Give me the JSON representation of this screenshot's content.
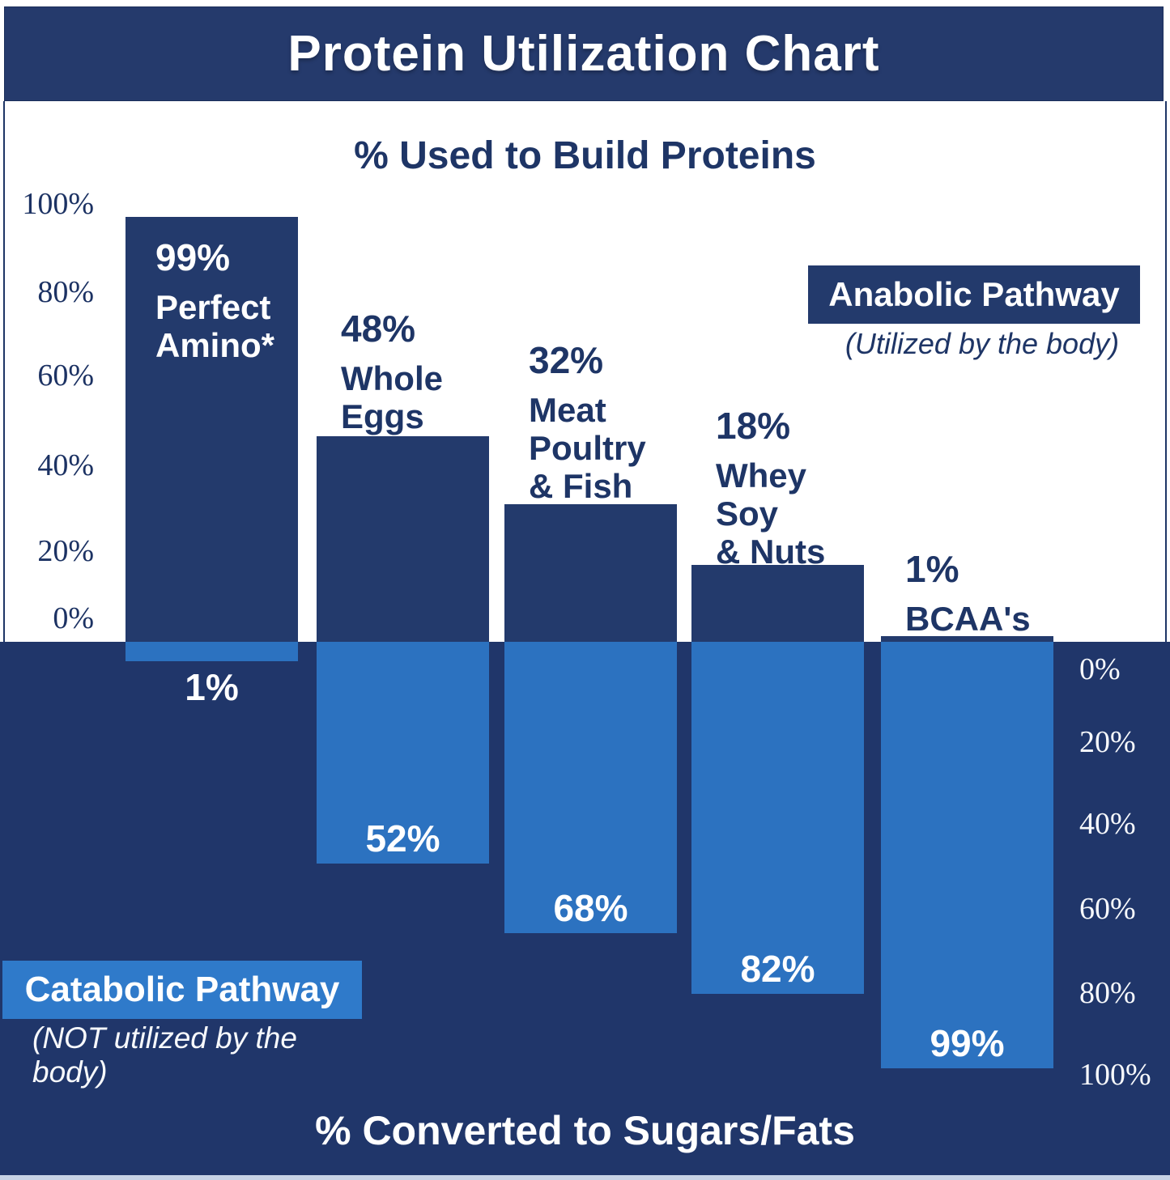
{
  "header": {
    "title": "Protein Utilization Chart"
  },
  "top_section": {
    "title": "% Used to Build Proteins",
    "axis_labels": [
      "100%",
      "80%",
      "60%",
      "40%",
      "20%",
      "0%"
    ],
    "legend": {
      "label": "Anabolic Pathway",
      "caption": "(Utilized by the body)"
    }
  },
  "bottom_section": {
    "title": "% Converted to Sugars/Fats",
    "axis_labels": [
      "0%",
      "20%",
      "40%",
      "60%",
      "80%",
      "100%"
    ],
    "legend": {
      "label": "Catabolic Pathway",
      "caption": "(NOT utilized by the body)"
    }
  },
  "chart_data": {
    "type": "bar",
    "title": "Protein Utilization Chart",
    "top_axis": {
      "label": "% Used to Build Proteins",
      "range": [
        0,
        100
      ],
      "ticks": [
        100,
        80,
        60,
        40,
        20,
        0
      ]
    },
    "bottom_axis": {
      "label": "% Converted to Sugars/Fats",
      "range": [
        0,
        100
      ],
      "ticks": [
        0,
        20,
        40,
        60,
        80,
        100
      ]
    },
    "categories": [
      "Perfect Amino*",
      "Whole Eggs",
      "Meat Poultry & Fish",
      "Whey Soy & Nuts",
      "BCAA's"
    ],
    "series": [
      {
        "name": "Anabolic Pathway (Utilized by the body)",
        "values": [
          99,
          48,
          32,
          18,
          1
        ]
      },
      {
        "name": "Catabolic Pathway (NOT utilized by the body)",
        "values": [
          1,
          52,
          68,
          82,
          99
        ]
      }
    ],
    "bars": [
      {
        "category": "Perfect Amino*",
        "anabolic_pct": 99,
        "catabolic_pct": 1,
        "label_lines": [
          "99%",
          "Perfect",
          "Amino*"
        ],
        "catabolic_label": "1%"
      },
      {
        "category": "Whole Eggs",
        "anabolic_pct": 48,
        "catabolic_pct": 52,
        "label_lines": [
          "48%",
          "Whole",
          "Eggs"
        ],
        "catabolic_label": "52%"
      },
      {
        "category": "Meat Poultry & Fish",
        "anabolic_pct": 32,
        "catabolic_pct": 68,
        "label_lines": [
          "32%",
          "Meat",
          "Poultry",
          "& Fish"
        ],
        "catabolic_label": "68%"
      },
      {
        "category": "Whey Soy & Nuts",
        "anabolic_pct": 18,
        "catabolic_pct": 82,
        "label_lines": [
          "18%",
          "Whey",
          "Soy",
          "& Nuts"
        ],
        "catabolic_label": "82%"
      },
      {
        "category": "BCAA's",
        "anabolic_pct": 1,
        "catabolic_pct": 99,
        "label_lines": [
          "1%",
          "BCAA's"
        ],
        "catabolic_label": "99%"
      }
    ],
    "legend_position": "anabolic top-right, catabolic bottom-left"
  },
  "colors": {
    "navy": "#233A6C",
    "banner_navy": "#253A6C",
    "background_navy": "#20366A",
    "light_blue": "#2C72C0",
    "catabolic_box_blue": "#2F7ACA",
    "axis_text_navy": "#1C3263",
    "white": "#FFFFFF",
    "footer_strip": "#C7D3E6"
  }
}
